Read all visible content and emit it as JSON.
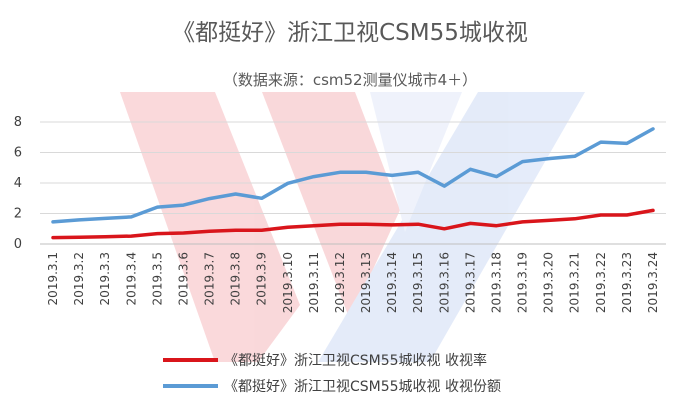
{
  "chart_data": {
    "type": "line",
    "title": "《都挺好》浙江卫视CSM55城收视",
    "subtitle": "（数据来源：csm52测量仪城市4＋）",
    "xlabel": "",
    "ylabel": "",
    "categories": [
      "2019.3.1",
      "2019.3.2",
      "2019.3.3",
      "2019.3.4",
      "2019.3.5",
      "2019.3.6",
      "2019.3.7",
      "2019.3.8",
      "2019.3.9",
      "2019.3.10",
      "2019.3.11",
      "2019.3.12",
      "2019.3.13",
      "2019.3.14",
      "2019.3.15",
      "2019.3.16",
      "2019.3.17",
      "2019.3.18",
      "2019.3.19",
      "2019.3.20",
      "2019.3.21",
      "2019.3.22",
      "2019.3.23",
      "2019.3.24"
    ],
    "yticks": [
      "0",
      "2",
      "4",
      "6",
      "8"
    ],
    "ylim": [
      0,
      8
    ],
    "grid": true,
    "legend_position": "bottom",
    "series": [
      {
        "name": "《都挺好》浙江卫视CSM55城收视 收视率",
        "color": "#d9151b",
        "values": [
          0.42,
          0.44,
          0.48,
          0.52,
          0.68,
          0.72,
          0.84,
          0.9,
          0.9,
          1.1,
          1.2,
          1.3,
          1.3,
          1.25,
          1.3,
          1.0,
          1.35,
          1.2,
          1.45,
          1.55,
          1.65,
          1.9,
          1.9,
          2.2
        ]
      },
      {
        "name": "《都挺好》浙江卫视CSM55城收视 收视份额",
        "color": "#5b9bd5",
        "values": [
          1.45,
          1.58,
          1.68,
          1.78,
          2.42,
          2.55,
          2.98,
          3.28,
          3.0,
          3.98,
          4.42,
          4.7,
          4.7,
          4.5,
          4.7,
          3.8,
          4.9,
          4.42,
          5.4,
          5.6,
          5.75,
          6.68,
          6.6,
          7.55
        ]
      }
    ]
  }
}
